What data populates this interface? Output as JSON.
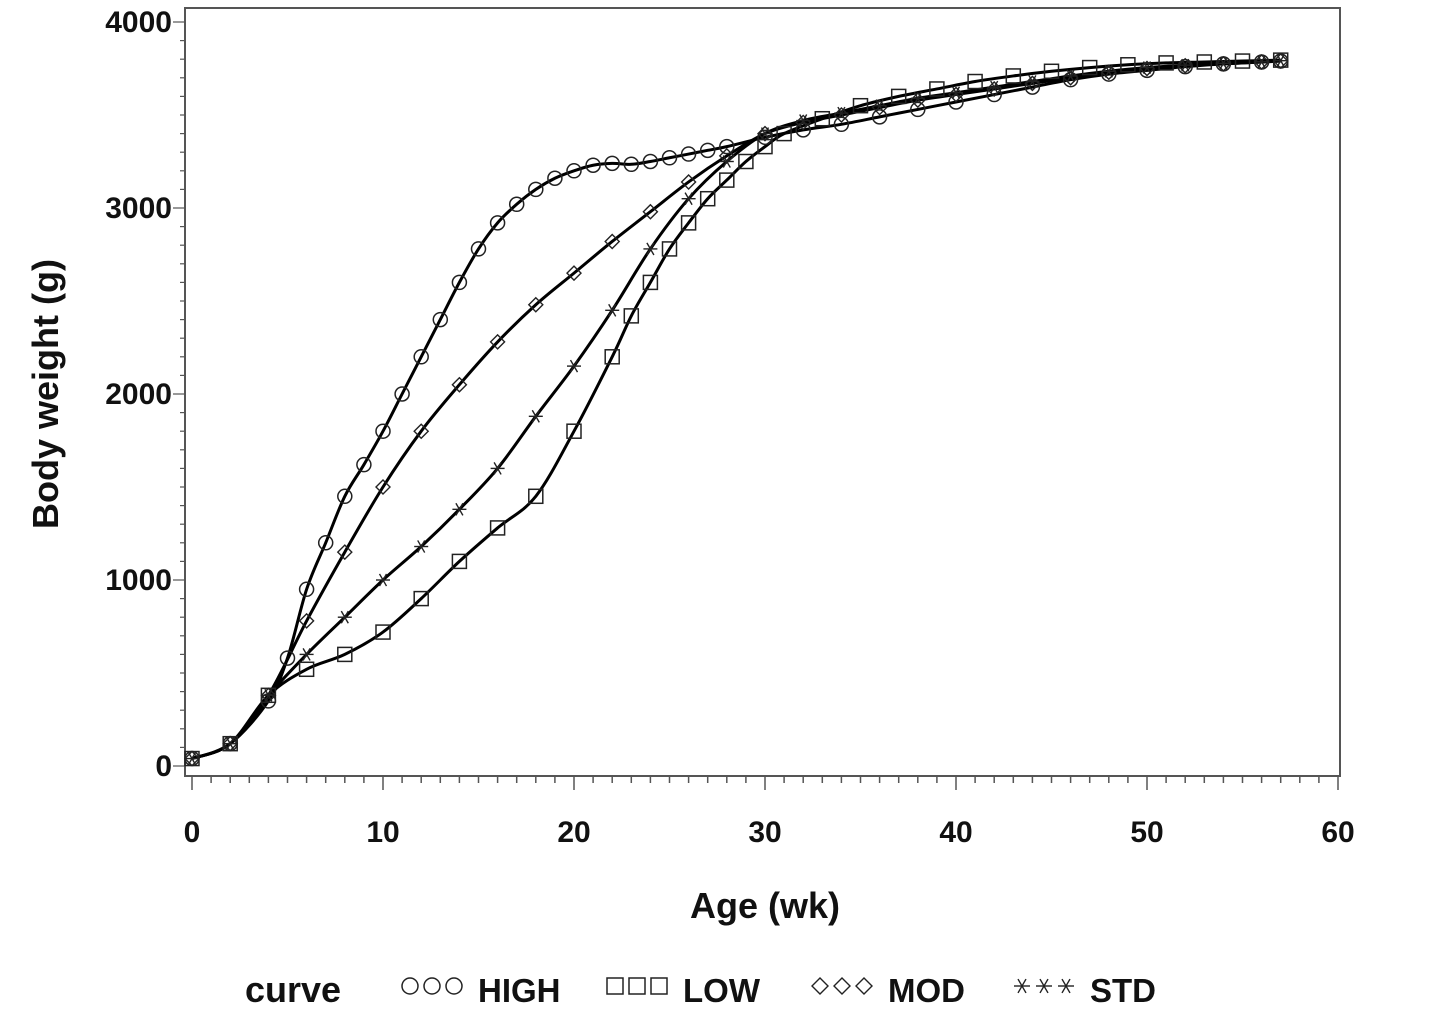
{
  "chart_data": {
    "type": "scatter",
    "title": "",
    "xlabel": "Age (wk)",
    "ylabel": "Body weight (g)",
    "xlim": [
      0,
      60
    ],
    "ylim": [
      0,
      4000
    ],
    "xticks": [
      0,
      10,
      20,
      30,
      40,
      50,
      60
    ],
    "yticks": [
      0,
      1000,
      2000,
      3000,
      4000
    ],
    "grid": false,
    "legend": {
      "title": "curve",
      "placement": "bottom"
    },
    "series": [
      {
        "name": "HIGH",
        "marker": "circle",
        "x": [
          0,
          2,
          4,
          5,
          6,
          7,
          8,
          9,
          10,
          11,
          12,
          13,
          14,
          15,
          16,
          17,
          18,
          19,
          20,
          21,
          22,
          23,
          24,
          25,
          26,
          27,
          28,
          30,
          32,
          34,
          36,
          38,
          40,
          42,
          44,
          46,
          48,
          50,
          52,
          54,
          56,
          57
        ],
        "y": [
          40,
          120,
          350,
          580,
          950,
          1200,
          1450,
          1620,
          1800,
          2000,
          2200,
          2400,
          2600,
          2780,
          2920,
          3020,
          3100,
          3160,
          3200,
          3230,
          3240,
          3235,
          3250,
          3270,
          3290,
          3310,
          3330,
          3380,
          3420,
          3450,
          3490,
          3530,
          3570,
          3610,
          3650,
          3690,
          3720,
          3740,
          3760,
          3775,
          3785,
          3790
        ]
      },
      {
        "name": "LOW",
        "marker": "square",
        "x": [
          0,
          2,
          4,
          6,
          8,
          10,
          12,
          14,
          16,
          18,
          20,
          22,
          23,
          24,
          25,
          26,
          27,
          28,
          29,
          30,
          31,
          33,
          35,
          37,
          39,
          41,
          43,
          45,
          47,
          49,
          51,
          53,
          55,
          57
        ],
        "y": [
          40,
          120,
          380,
          520,
          600,
          720,
          900,
          1100,
          1280,
          1450,
          1800,
          2200,
          2420,
          2600,
          2780,
          2920,
          3050,
          3150,
          3250,
          3330,
          3400,
          3480,
          3550,
          3600,
          3640,
          3680,
          3710,
          3735,
          3755,
          3770,
          3780,
          3785,
          3790,
          3795
        ]
      },
      {
        "name": "MOD",
        "marker": "diamond",
        "x": [
          0,
          2,
          4,
          6,
          8,
          10,
          12,
          14,
          16,
          18,
          20,
          22,
          24,
          26,
          28,
          30,
          32,
          34,
          36,
          38,
          40,
          42,
          44,
          46,
          48,
          50,
          52,
          54,
          56,
          57
        ],
        "y": [
          40,
          120,
          380,
          780,
          1150,
          1500,
          1800,
          2050,
          2280,
          2480,
          2650,
          2820,
          2980,
          3140,
          3280,
          3400,
          3460,
          3500,
          3540,
          3580,
          3610,
          3640,
          3670,
          3700,
          3730,
          3750,
          3765,
          3775,
          3785,
          3790
        ]
      },
      {
        "name": "STD",
        "marker": "asterisk",
        "x": [
          0,
          2,
          4,
          6,
          8,
          10,
          12,
          14,
          16,
          18,
          20,
          22,
          24,
          26,
          28,
          30,
          32,
          34,
          36,
          38,
          40,
          42,
          44,
          46,
          48,
          50,
          52,
          54,
          56,
          57
        ],
        "y": [
          40,
          120,
          380,
          600,
          800,
          1000,
          1180,
          1380,
          1600,
          1880,
          2150,
          2450,
          2780,
          3050,
          3250,
          3400,
          3470,
          3510,
          3550,
          3590,
          3620,
          3650,
          3680,
          3710,
          3735,
          3755,
          3768,
          3778,
          3786,
          3792
        ]
      }
    ]
  }
}
